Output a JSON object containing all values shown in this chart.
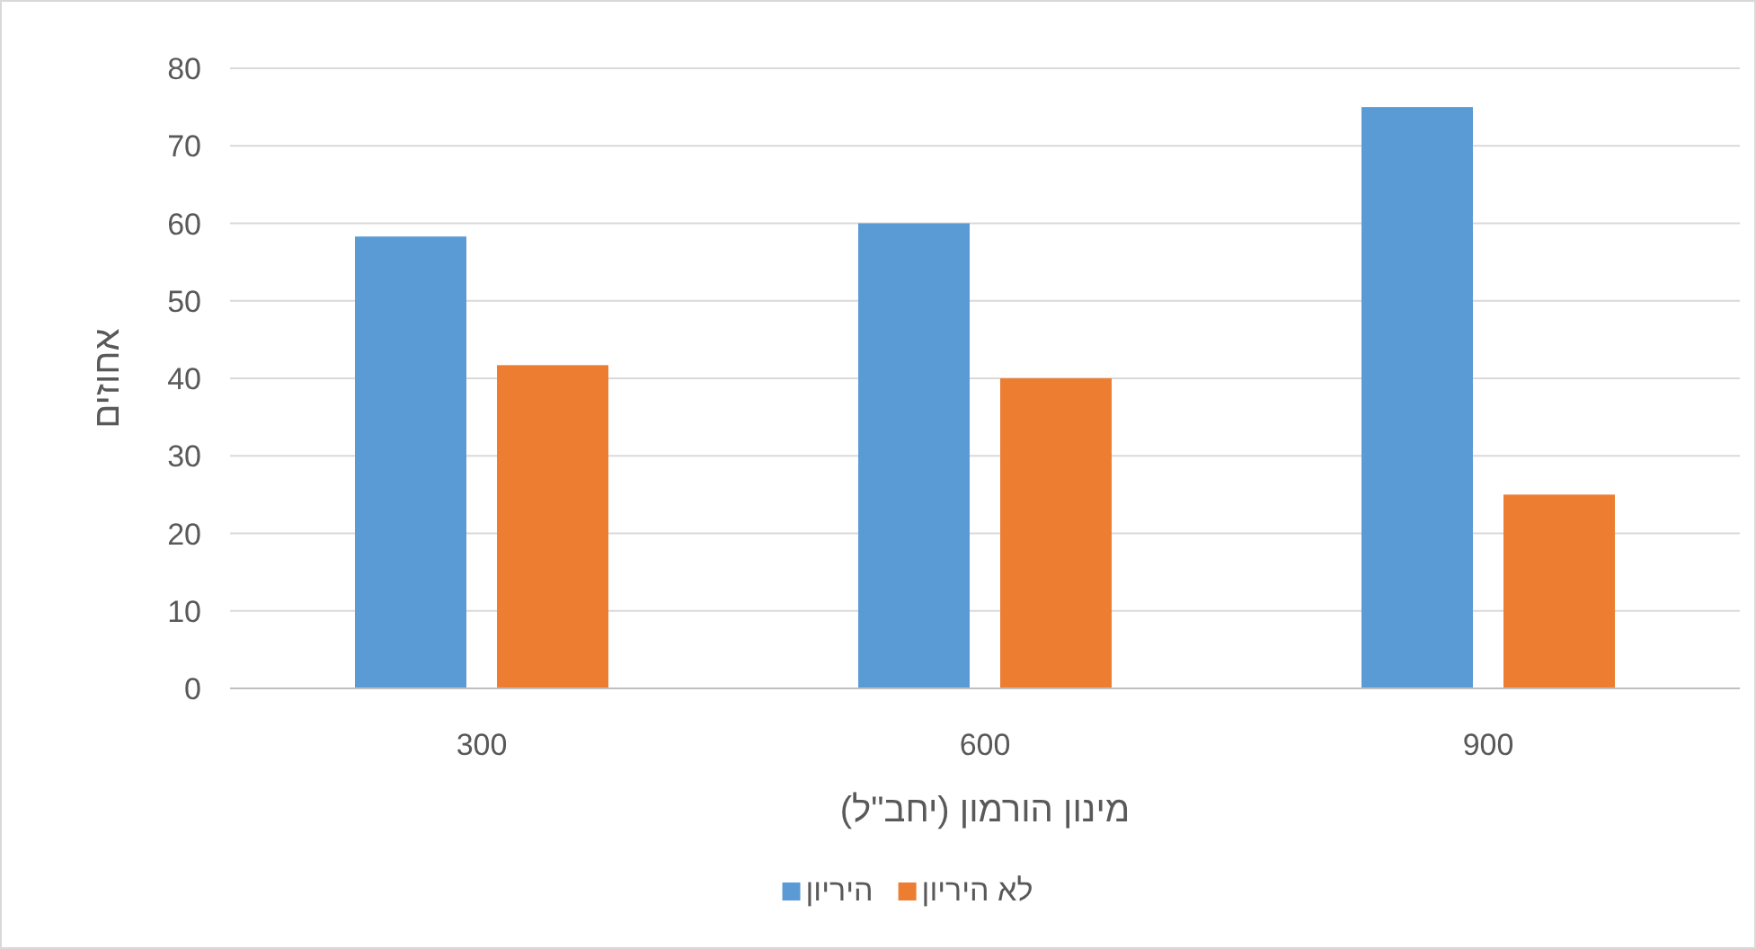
{
  "chart_data": {
    "type": "bar",
    "xlabel": "מינון הורמון (יחב\"ל)",
    "ylabel": "אחוזים",
    "categories": [
      "300",
      "600",
      "900"
    ],
    "series": [
      {
        "name": "היריון",
        "color": "#5b9bd5",
        "values": [
          58.3,
          60,
          75
        ]
      },
      {
        "name": "לא היריון",
        "color": "#ed7d31",
        "values": [
          41.7,
          40,
          25
        ]
      }
    ],
    "ylim": [
      0,
      80
    ],
    "yticks": [
      0,
      10,
      20,
      30,
      40,
      50,
      60,
      70,
      80
    ],
    "grid": "y",
    "legend": "bottom"
  }
}
